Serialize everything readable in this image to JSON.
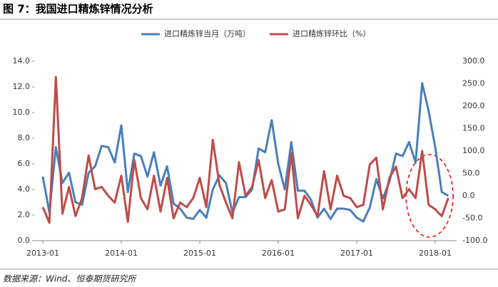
{
  "title": "图 7：我国进口精炼锌情况分析",
  "source": "数据来源：Wind、恒泰期货研究所",
  "chart_data": {
    "type": "line",
    "categories": [
      "2013-01",
      null,
      null,
      null,
      null,
      null,
      null,
      null,
      null,
      null,
      null,
      null,
      "2014-01",
      null,
      null,
      null,
      null,
      null,
      null,
      null,
      null,
      null,
      null,
      null,
      "2015-01",
      null,
      null,
      null,
      null,
      null,
      null,
      null,
      null,
      null,
      null,
      null,
      "2016-01",
      null,
      null,
      null,
      null,
      null,
      null,
      null,
      null,
      null,
      null,
      null,
      "2017-01",
      null,
      null,
      null,
      null,
      null,
      null,
      null,
      null,
      null,
      null,
      null,
      "2018-01",
      null,
      null
    ],
    "series": [
      {
        "name": "进口精炼锌当月（万吨）",
        "color": "#4a7ebb",
        "values": [
          5.0,
          2.2,
          7.3,
          4.5,
          5.3,
          3.0,
          2.8,
          5.3,
          5.8,
          7.4,
          7.3,
          6.1,
          9.0,
          3.8,
          6.8,
          6.6,
          5.0,
          6.9,
          4.3,
          5.8,
          2.9,
          2.5,
          1.8,
          1.7,
          2.4,
          1.8,
          4.0,
          5.1,
          4.5,
          2.2,
          3.4,
          3.4,
          4.0,
          7.2,
          6.9,
          9.4,
          6.0,
          4.0,
          7.7,
          3.9,
          3.9,
          3.2,
          1.8,
          2.5,
          1.7,
          2.5,
          2.5,
          2.4,
          1.8,
          1.5,
          2.6,
          4.8,
          3.3,
          4.6,
          6.8,
          6.6,
          7.7,
          6.1,
          12.3,
          10.1,
          7.3,
          3.8,
          3.5
        ]
      },
      {
        "name": "进口精炼锌环比（%）",
        "color": "#be4b48",
        "axis": "y2",
        "values": [
          -25,
          -60,
          265,
          -40,
          20,
          -45,
          -5,
          90,
          15,
          20,
          0,
          -15,
          45,
          -58,
          80,
          -5,
          -30,
          45,
          -35,
          40,
          -50,
          -15,
          -25,
          -5,
          40,
          -25,
          125,
          25,
          -15,
          -50,
          75,
          0,
          20,
          80,
          -5,
          35,
          -35,
          -30,
          95,
          -50,
          0,
          -20,
          -45,
          55,
          -30,
          45,
          0,
          -5,
          -25,
          -20,
          70,
          85,
          -30,
          40,
          65,
          -5,
          15,
          -5,
          100,
          -20,
          -30,
          -45,
          -5
        ]
      }
    ],
    "ylim": [
      0,
      14
    ],
    "yticks": [
      {
        "value": 0,
        "label": "0.0"
      },
      {
        "value": 2,
        "label": "2.0"
      },
      {
        "value": 4,
        "label": "4.0"
      },
      {
        "value": 6,
        "label": "6.0"
      },
      {
        "value": 8,
        "label": "8.0"
      },
      {
        "value": 10,
        "label": "10.0"
      },
      {
        "value": 12,
        "label": "12.0"
      },
      {
        "value": 14,
        "label": "14.0"
      }
    ],
    "y2lim": [
      -100,
      300
    ],
    "y2ticks": [
      {
        "value": -100,
        "label": "-100.0"
      },
      {
        "value": -50,
        "label": "-50.0"
      },
      {
        "value": 0,
        "label": "0.0"
      },
      {
        "value": 50,
        "label": "50.0"
      },
      {
        "value": 100,
        "label": "100.0"
      },
      {
        "value": 150,
        "label": "150.0"
      },
      {
        "value": 200,
        "label": "200.0"
      },
      {
        "value": 250,
        "label": "250.0"
      },
      {
        "value": 300,
        "label": "300.0"
      }
    ],
    "legend": "top"
  }
}
